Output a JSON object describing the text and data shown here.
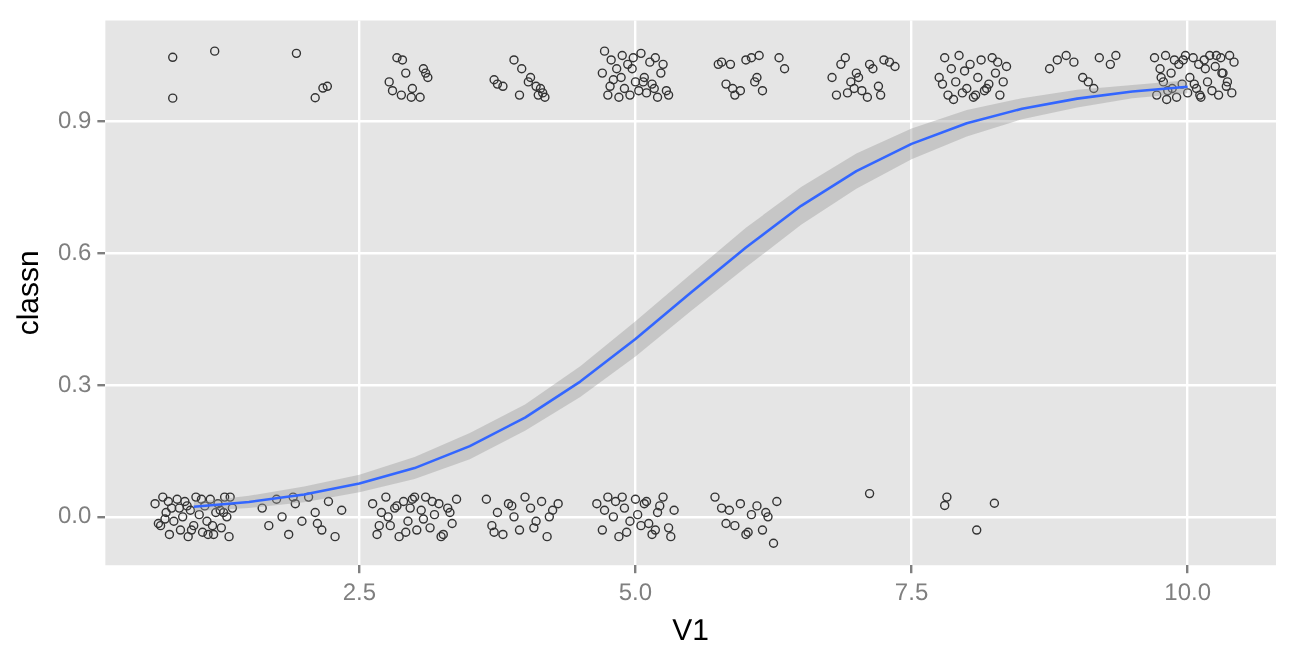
{
  "chart_data": {
    "type": "scatter",
    "xlabel": "V1",
    "ylabel": "classn",
    "xlim": [
      0.2,
      10.8
    ],
    "xticks": [
      2.5,
      {
        "value": 5,
        "label": "5.0"
      },
      7.5,
      {
        "value": 10,
        "label": "10.0"
      }
    ],
    "ylim": [
      -0.11,
      1.13
    ],
    "yticks": [
      {
        "value": 0,
        "label": "0.0"
      },
      0.3,
      0.6,
      0.9
    ],
    "grid": true,
    "legend": false,
    "marker": "circle",
    "series": [
      {
        "color": "#333333",
        "x": [
          0.65,
          0.7,
          0.72,
          0.75,
          0.78,
          0.8,
          0.82,
          0.85,
          0.88,
          0.9,
          0.92,
          0.95,
          0.97,
          1.0,
          1.02,
          1.05,
          1.08,
          1.1,
          1.12,
          1.15,
          1.18,
          1.2,
          1.22,
          1.25,
          1.28,
          1.3,
          1.32,
          1.35,
          0.68,
          0.77,
          0.87,
          0.98,
          1.07,
          1.17,
          1.27,
          1.33,
          0.74,
          0.94,
          1.13,
          1.24
        ],
        "values": [
          0.03,
          -0.02,
          0.045,
          0.01,
          -0.04,
          0.02,
          -0.01,
          0.04,
          -0.03,
          0.0,
          0.035,
          -0.045,
          0.015,
          -0.02,
          0.045,
          0.005,
          -0.035,
          0.025,
          -0.01,
          0.04,
          -0.04,
          0.01,
          0.03,
          -0.025,
          0.045,
          0.0,
          -0.045,
          0.02,
          -0.015,
          0.035,
          0.02,
          -0.03,
          0.04,
          -0.02,
          0.01,
          0.045,
          -0.005,
          0.025,
          -0.04,
          0.015
        ]
      },
      {
        "color": "#333333",
        "x": [
          1.62,
          1.68,
          1.75,
          1.8,
          1.86,
          1.92,
          1.98,
          2.04,
          2.1,
          2.16,
          2.22,
          2.28,
          2.34,
          1.9,
          2.12
        ],
        "values": [
          0.02,
          -0.02,
          0.04,
          0.0,
          -0.04,
          0.03,
          -0.01,
          0.045,
          0.01,
          -0.03,
          0.035,
          -0.045,
          0.015,
          0.045,
          -0.015
        ]
      },
      {
        "color": "#333333",
        "x": [
          2.62,
          2.66,
          2.7,
          2.74,
          2.78,
          2.82,
          2.86,
          2.9,
          2.94,
          2.98,
          3.02,
          3.06,
          3.1,
          3.14,
          3.18,
          3.22,
          3.26,
          3.3,
          3.34,
          3.38,
          2.68,
          2.76,
          2.84,
          2.92,
          3.0,
          3.08,
          3.16,
          3.24,
          3.32,
          2.96
        ],
        "values": [
          0.03,
          -0.04,
          0.01,
          0.045,
          -0.02,
          0.02,
          -0.045,
          0.035,
          -0.01,
          0.04,
          -0.03,
          0.015,
          0.045,
          -0.025,
          0.005,
          0.03,
          -0.04,
          0.02,
          -0.015,
          0.04,
          -0.02,
          0.0,
          0.025,
          -0.035,
          0.045,
          -0.005,
          0.035,
          -0.045,
          0.01,
          0.02
        ]
      },
      {
        "color": "#333333",
        "x": [
          3.65,
          3.7,
          3.75,
          3.8,
          3.85,
          3.9,
          3.95,
          4.0,
          4.05,
          4.1,
          4.15,
          4.2,
          4.25,
          4.3,
          3.72,
          3.88,
          4.08,
          4.22
        ],
        "values": [
          0.04,
          -0.02,
          0.01,
          -0.04,
          0.03,
          0.0,
          -0.03,
          0.045,
          0.02,
          -0.01,
          0.035,
          -0.045,
          0.015,
          0.03,
          -0.035,
          0.025,
          -0.025,
          0.0
        ]
      },
      {
        "color": "#333333",
        "x": [
          4.65,
          4.7,
          4.75,
          4.8,
          4.85,
          4.9,
          4.95,
          5.0,
          5.05,
          5.1,
          5.15,
          5.2,
          5.25,
          5.3,
          5.35,
          4.72,
          4.82,
          4.92,
          5.02,
          5.12,
          5.22,
          5.32,
          4.88,
          5.08,
          5.18
        ],
        "values": [
          0.03,
          -0.03,
          0.045,
          0.0,
          -0.045,
          0.02,
          -0.01,
          0.04,
          -0.02,
          0.035,
          -0.04,
          0.01,
          0.045,
          -0.025,
          0.015,
          0.015,
          0.035,
          -0.035,
          0.005,
          -0.015,
          0.025,
          -0.045,
          0.045,
          0.03,
          -0.03
        ]
      },
      {
        "color": "#333333",
        "x": [
          5.72,
          5.78,
          5.85,
          5.9,
          5.95,
          6.0,
          6.05,
          6.1,
          6.15,
          6.2,
          6.25,
          6.28,
          5.82,
          6.02,
          6.18,
          7.12,
          7.82,
          7.8,
          8.25,
          8.09
        ],
        "values": [
          0.045,
          0.02,
          0.015,
          -0.02,
          0.03,
          -0.04,
          0.005,
          0.025,
          -0.03,
          0.0,
          -0.06,
          0.035,
          -0.015,
          -0.035,
          0.01,
          0.053,
          0.045,
          0.026,
          0.031,
          -0.03
        ]
      },
      {
        "color": "#333333",
        "x": [
          0.81,
          1.19,
          0.81,
          1.93,
          2.1,
          2.17,
          2.21,
          2.77,
          2.84,
          2.89,
          2.92,
          2.98,
          3.05,
          3.08,
          3.1,
          3.12,
          2.8,
          2.88,
          2.97,
          3.72,
          3.75,
          3.8,
          3.9,
          3.97,
          4.03,
          4.1,
          4.12,
          4.14,
          4.16,
          4.18,
          3.95,
          4.05
        ],
        "values": [
          1.046,
          1.06,
          0.953,
          1.055,
          0.954,
          0.976,
          0.98,
          0.99,
          1.045,
          1.04,
          1.01,
          0.975,
          0.955,
          1.02,
          1.01,
          1.0,
          0.97,
          0.96,
          0.955,
          0.995,
          0.985,
          0.98,
          1.04,
          1.02,
          0.99,
          0.98,
          0.96,
          0.975,
          0.965,
          0.955,
          0.96,
          1.0
        ]
      },
      {
        "color": "#333333",
        "x": [
          4.7,
          4.72,
          4.75,
          4.78,
          4.8,
          4.83,
          4.85,
          4.88,
          4.9,
          4.93,
          4.95,
          4.98,
          5.0,
          5.03,
          5.05,
          5.08,
          5.1,
          5.13,
          5.15,
          5.18,
          5.2,
          5.23,
          5.25,
          5.28,
          5.3,
          4.77,
          4.87,
          4.97,
          5.07,
          5.17
        ],
        "values": [
          1.01,
          1.06,
          0.96,
          1.04,
          0.995,
          1.02,
          0.955,
          1.05,
          0.975,
          1.03,
          0.96,
          1.045,
          0.99,
          0.97,
          1.055,
          1.0,
          0.965,
          1.035,
          0.985,
          1.045,
          0.955,
          1.01,
          1.03,
          0.97,
          0.96,
          0.98,
          1.0,
          1.02,
          0.99,
          0.975
        ]
      },
      {
        "color": "#333333",
        "x": [
          5.75,
          5.78,
          5.82,
          5.86,
          5.9,
          5.95,
          6.0,
          6.05,
          6.1,
          6.15,
          6.3,
          6.35,
          5.88,
          6.08,
          6.12,
          6.78,
          6.82,
          6.86,
          6.9,
          6.95,
          7.0,
          7.05,
          7.1,
          7.15,
          7.2,
          7.25,
          7.3,
          7.35,
          6.92,
          7.02,
          7.12,
          7.22,
          6.98
        ],
        "values": [
          1.03,
          1.035,
          0.985,
          1.03,
          0.96,
          0.97,
          1.04,
          1.045,
          1.0,
          0.97,
          1.045,
          1.02,
          0.975,
          0.99,
          1.05,
          1.0,
          0.96,
          1.03,
          1.045,
          0.99,
          1.01,
          0.97,
          0.955,
          1.02,
          0.98,
          1.04,
          1.035,
          1.025,
          0.965,
          1.0,
          1.03,
          0.96,
          0.975
        ]
      },
      {
        "color": "#333333",
        "x": [
          7.75,
          7.78,
          7.8,
          7.83,
          7.86,
          7.9,
          7.93,
          7.96,
          8.0,
          8.03,
          8.06,
          8.1,
          8.13,
          8.16,
          8.2,
          8.23,
          8.26,
          8.3,
          8.33,
          8.36,
          7.88,
          7.98,
          8.08,
          8.18,
          8.28,
          8.75,
          8.82,
          8.9,
          8.97,
          9.05,
          9.1,
          9.15,
          9.2,
          9.3,
          9.35
        ],
        "values": [
          1.0,
          0.985,
          1.045,
          0.96,
          1.02,
          0.99,
          1.05,
          0.965,
          0.975,
          1.03,
          0.955,
          1.0,
          1.04,
          0.97,
          0.985,
          1.045,
          1.01,
          0.96,
          0.99,
          1.025,
          0.95,
          1.015,
          0.96,
          0.975,
          1.035,
          1.02,
          1.04,
          1.05,
          1.035,
          1.0,
          0.99,
          0.975,
          1.045,
          1.03,
          1.05
        ]
      },
      {
        "color": "#333333",
        "x": [
          9.7,
          9.72,
          9.75,
          9.78,
          9.8,
          9.82,
          9.85,
          9.88,
          9.9,
          9.92,
          9.95,
          9.98,
          10.0,
          10.02,
          10.05,
          10.08,
          10.1,
          10.12,
          10.15,
          10.18,
          10.2,
          10.22,
          10.25,
          10.28,
          10.3,
          10.32,
          10.35,
          10.38,
          10.4,
          10.42,
          9.76,
          9.86,
          9.96,
          10.06,
          10.16,
          10.26,
          10.36,
          9.81,
          10.11,
          10.31
        ],
        "values": [
          1.045,
          0.96,
          1.02,
          0.99,
          1.05,
          0.97,
          1.01,
          1.04,
          0.955,
          1.03,
          0.985,
          1.05,
          0.965,
          1.0,
          1.045,
          0.975,
          1.03,
          0.955,
          1.04,
          0.99,
          1.05,
          0.97,
          1.025,
          0.96,
          1.045,
          1.01,
          0.98,
          1.05,
          0.965,
          1.035,
          1.0,
          0.975,
          1.04,
          0.985,
          1.02,
          1.05,
          0.99,
          0.95,
          0.96,
          1.01
        ]
      },
      {
        "type": "line",
        "marker": "none",
        "color": "#3366ff",
        "x": [
          1,
          1.5,
          2,
          2.5,
          3,
          3.5,
          4,
          4.5,
          5,
          5.5,
          6,
          6.5,
          7,
          7.5,
          8,
          8.5,
          9,
          9.5,
          10
        ],
        "values": [
          0.023,
          0.034,
          0.051,
          0.076,
          0.111,
          0.161,
          0.226,
          0.308,
          0.405,
          0.51,
          0.613,
          0.708,
          0.787,
          0.849,
          0.896,
          0.929,
          0.952,
          0.968,
          0.979
        ],
        "lower": [
          0.013,
          0.02,
          0.033,
          0.056,
          0.086,
          0.131,
          0.196,
          0.273,
          0.365,
          0.468,
          0.568,
          0.665,
          0.747,
          0.814,
          0.866,
          0.905,
          0.932,
          0.953,
          0.964
        ],
        "upper": [
          0.033,
          0.048,
          0.069,
          0.096,
          0.136,
          0.191,
          0.256,
          0.343,
          0.445,
          0.552,
          0.658,
          0.751,
          0.827,
          0.884,
          0.926,
          0.953,
          0.972,
          0.983,
          0.994
        ]
      }
    ]
  }
}
